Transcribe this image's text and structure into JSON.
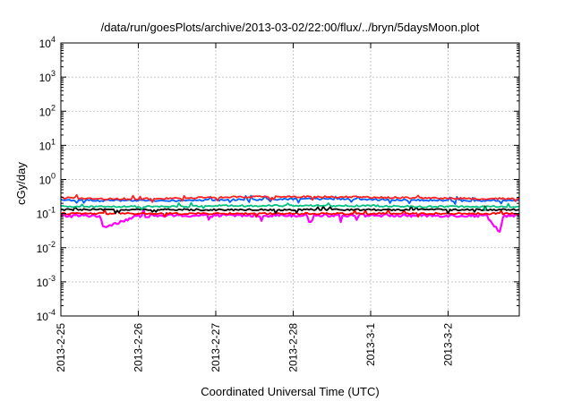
{
  "chart_data": {
    "type": "line",
    "title": "/data/run/goesPlots/archive/2013-03-02/22:00/flux/../bryn/5daysMoon.plot",
    "xlabel": "Coordinated Universal Time (UTC)",
    "ylabel": "cGy/day",
    "y_scale": "log",
    "ylim": [
      0.0001,
      10000
    ],
    "xlim": [
      "2013-02-25",
      "2013-03-02 22:00"
    ],
    "grid": true,
    "x_tick_labels": [
      "2013-2-25",
      "2013-2-26",
      "2013-2-27",
      "2013-2-28",
      "2013-3-1",
      "2013-3-2"
    ],
    "y_ticks": [
      {
        "base": "10",
        "exp": "-4",
        "value": 0.0001
      },
      {
        "base": "10",
        "exp": "-3",
        "value": 0.001
      },
      {
        "base": "10",
        "exp": "-2",
        "value": 0.01
      },
      {
        "base": "10",
        "exp": "-1",
        "value": 0.1
      },
      {
        "base": "10",
        "exp": "0",
        "value": 1
      },
      {
        "base": "10",
        "exp": "1",
        "value": 10
      },
      {
        "base": "10",
        "exp": "2",
        "value": 100
      },
      {
        "base": "10",
        "exp": "3",
        "value": 1000
      },
      {
        "base": "10",
        "exp": "4",
        "value": 10000
      }
    ],
    "series": [
      {
        "color": "#ff00ff",
        "x": [
          "2013-02-25",
          "2013-02-25 12:00",
          "2013-02-25 13:00",
          "2013-02-26",
          "2013-02-26 12:00",
          "2013-02-27",
          "2013-02-27 12:00",
          "2013-02-28",
          "2013-02-28 12:00",
          "2013-03-01",
          "2013-03-01 12:00",
          "2013-03-02",
          "2013-03-02 12:00",
          "2013-03-02 16:00",
          "2013-03-02 17:00",
          "2013-03-02 22:00"
        ],
        "values": [
          0.085,
          0.088,
          0.04,
          0.086,
          0.087,
          0.088,
          0.089,
          0.09,
          0.09,
          0.089,
          0.088,
          0.088,
          0.087,
          0.028,
          0.086,
          0.085
        ]
      },
      {
        "color": "#ff0000",
        "x": [
          "2013-02-25",
          "2013-02-25 12:00",
          "2013-02-26",
          "2013-02-26 12:00",
          "2013-02-27",
          "2013-02-27 12:00",
          "2013-02-28",
          "2013-02-28 12:00",
          "2013-03-01",
          "2013-03-01 12:00",
          "2013-03-02",
          "2013-03-02 12:00",
          "2013-03-02 22:00"
        ],
        "values": [
          0.1,
          0.1,
          0.1,
          0.1,
          0.1,
          0.1,
          0.1,
          0.1,
          0.1,
          0.1,
          0.1,
          0.1,
          0.1
        ]
      },
      {
        "color": "#000000",
        "x": [
          "2013-02-25",
          "2013-02-25 12:00",
          "2013-02-26",
          "2013-02-26 12:00",
          "2013-02-27",
          "2013-02-27 12:00",
          "2013-02-28",
          "2013-02-28 12:00",
          "2013-03-01",
          "2013-03-01 12:00",
          "2013-03-02",
          "2013-03-02 12:00",
          "2013-03-02 22:00"
        ],
        "values": [
          0.13,
          0.13,
          0.13,
          0.13,
          0.13,
          0.13,
          0.13,
          0.13,
          0.13,
          0.13,
          0.13,
          0.13,
          0.13
        ]
      },
      {
        "color": "#00c080",
        "x": [
          "2013-02-25",
          "2013-02-25 12:00",
          "2013-02-26",
          "2013-02-26 12:00",
          "2013-02-27",
          "2013-02-27 12:00",
          "2013-02-28",
          "2013-02-28 12:00",
          "2013-03-01",
          "2013-03-01 12:00",
          "2013-03-02",
          "2013-03-02 12:00",
          "2013-03-02 22:00"
        ],
        "values": [
          0.16,
          0.16,
          0.16,
          0.16,
          0.17,
          0.17,
          0.17,
          0.17,
          0.17,
          0.16,
          0.16,
          0.16,
          0.16
        ]
      },
      {
        "color": "#0060ff",
        "x": [
          "2013-02-25",
          "2013-02-25 12:00",
          "2013-02-26",
          "2013-02-26 12:00",
          "2013-02-27",
          "2013-02-27 12:00",
          "2013-02-28",
          "2013-02-28 12:00",
          "2013-03-01",
          "2013-03-01 12:00",
          "2013-03-02",
          "2013-03-02 12:00",
          "2013-03-02 22:00"
        ],
        "values": [
          0.25,
          0.24,
          0.24,
          0.24,
          0.25,
          0.26,
          0.27,
          0.27,
          0.26,
          0.25,
          0.24,
          0.24,
          0.25
        ]
      },
      {
        "color": "#ff2020",
        "x": [
          "2013-02-25",
          "2013-02-25 12:00",
          "2013-02-26",
          "2013-02-26 12:00",
          "2013-02-27",
          "2013-02-27 12:00",
          "2013-02-28",
          "2013-02-28 12:00",
          "2013-03-01",
          "2013-03-01 12:00",
          "2013-03-02",
          "2013-03-02 12:00",
          "2013-03-02 22:00"
        ],
        "values": [
          0.29,
          0.27,
          0.27,
          0.28,
          0.3,
          0.31,
          0.31,
          0.31,
          0.3,
          0.29,
          0.28,
          0.27,
          0.28
        ]
      }
    ]
  }
}
